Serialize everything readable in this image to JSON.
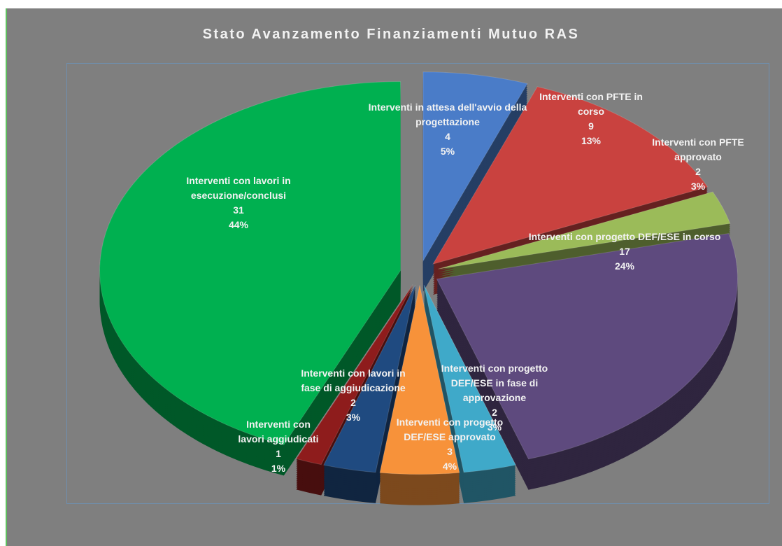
{
  "chart_data": {
    "type": "pie",
    "title": "Stato Avanzamento Finanziamenti Mutuo RAS",
    "categories": [
      "Interventi in attesa dell'avvio della progettazione",
      "Interventi con PFTE in corso",
      "Interventi con PFTE approvato",
      "Interventi con progetto DEF/ESE in corso",
      "Interventi con progetto DEF/ESE in fase di approvazione",
      "Interventi con progetto DEF/ESE approvato",
      "Interventi con lavori in fase di aggiudicazione",
      "Interventi con lavori aggiudicati",
      "Interventi con lavori in esecuzione/conclusi"
    ],
    "values": [
      4,
      9,
      2,
      17,
      2,
      3,
      2,
      1,
      31
    ],
    "percent_labels": [
      "5%",
      "13%",
      "3%",
      "24%",
      "3%",
      "4%",
      "3%",
      "1%",
      "44%"
    ],
    "colors": [
      "#4a7cc8",
      "#c9423f",
      "#9bbb59",
      "#5e4a7e",
      "#3fa9c9",
      "#f7923a",
      "#1f4a80",
      "#8e1c1c",
      "#00b050"
    ]
  }
}
